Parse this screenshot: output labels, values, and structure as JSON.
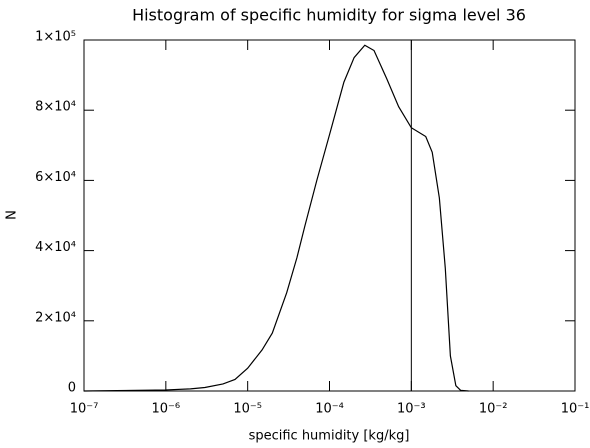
{
  "chart_data": {
    "type": "line",
    "title": "Histogram of specific humidity for sigma level 36",
    "xlabel": "specific humidity [kg/kg]",
    "ylabel": "N",
    "xscale": "log",
    "xlim": [
      1e-07,
      0.1
    ],
    "xticks": [
      {
        "value": 1e-07,
        "label": "10⁻⁷"
      },
      {
        "value": 1e-06,
        "label": "10⁻⁶"
      },
      {
        "value": 1e-05,
        "label": "10⁻⁵"
      },
      {
        "value": 0.0001,
        "label": "10⁻⁴"
      },
      {
        "value": 0.001,
        "label": "10⁻³"
      },
      {
        "value": 0.01,
        "label": "10⁻²"
      },
      {
        "value": 0.1,
        "label": "10⁻¹"
      }
    ],
    "ylim": [
      0,
      100000
    ],
    "yticks": [
      0,
      {
        "value": 20000,
        "label": "2×10⁴"
      },
      {
        "value": 40000,
        "label": "4×10⁴"
      },
      {
        "value": 60000,
        "label": "6×10⁴"
      },
      {
        "value": 80000,
        "label": "8×10⁴"
      },
      {
        "value": 100000,
        "label": "1×10⁵"
      }
    ],
    "vline": 0.001,
    "color": "#000000",
    "x": [
      1e-07,
      1e-06,
      2e-06,
      3e-06,
      5e-06,
      7e-06,
      1e-05,
      1.5e-05,
      2e-05,
      3e-05,
      4e-05,
      5e-05,
      7e-05,
      0.0001,
      0.00015,
      0.0002,
      0.00027,
      0.00035,
      0.0005,
      0.0007,
      0.001,
      0.0015,
      0.0018,
      0.0022,
      0.0026,
      0.003,
      0.0035,
      0.004,
      0.005
    ],
    "values": [
      0,
      300,
      600,
      1000,
      2000,
      3300,
      6500,
      11700,
      16500,
      28000,
      38000,
      47000,
      60000,
      73000,
      88000,
      95000,
      98500,
      97000,
      89000,
      81000,
      75000,
      72500,
      68000,
      55000,
      35000,
      10000,
      1500,
      200,
      0
    ]
  }
}
